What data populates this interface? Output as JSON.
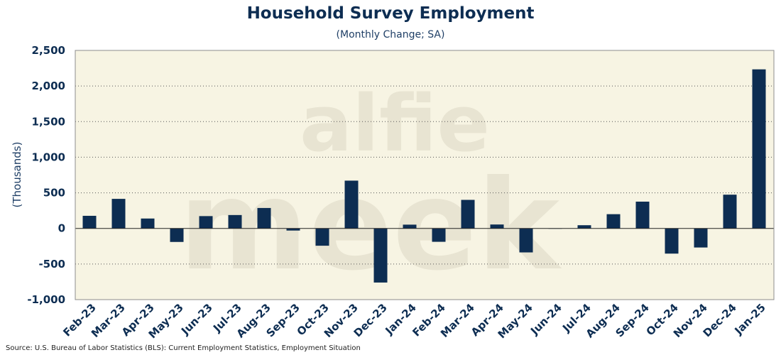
{
  "chart_data": {
    "type": "bar",
    "title": "Household Survey Employment",
    "subtitle": "(Monthly Change; SA)",
    "xlabel": "",
    "ylabel": "(Thousands)",
    "ylim": [
      -1000,
      2500
    ],
    "yticks": [
      2500,
      2000,
      1500,
      1000,
      500,
      0,
      -500,
      -1000
    ],
    "yticklabels": [
      "2,500",
      "2,000",
      "1,500",
      "1,000",
      "500",
      "0",
      "-500",
      "-1,000"
    ],
    "grid": "horizontal dotted",
    "categories": [
      "Feb-23",
      "Mar-23",
      "Apr-23",
      "May-23",
      "Jun-23",
      "Jul-23",
      "Aug-23",
      "Sep-23",
      "Oct-23",
      "Nov-23",
      "Dec-23",
      "Jan-24",
      "Feb-24",
      "Mar-24",
      "Apr-24",
      "May-24",
      "Jun-24",
      "Jul-24",
      "Aug-24",
      "Sep-24",
      "Oct-24",
      "Nov-24",
      "Dec-24",
      "Jan-25"
    ],
    "values": [
      177,
      415,
      139,
      -190,
      173,
      188,
      287,
      -30,
      -243,
      671,
      -760,
      53,
      -188,
      401,
      55,
      -337,
      0,
      45,
      200,
      376,
      -354,
      -268,
      474,
      2234
    ],
    "bar_color": "#0d2d52",
    "plot_background": "#f7f4e3",
    "watermark": [
      "alfie",
      "meek"
    ]
  },
  "source": "Source: U.S. Bureau of Labor Statistics (BLS): Current Employment Statistics, Employment Situation"
}
